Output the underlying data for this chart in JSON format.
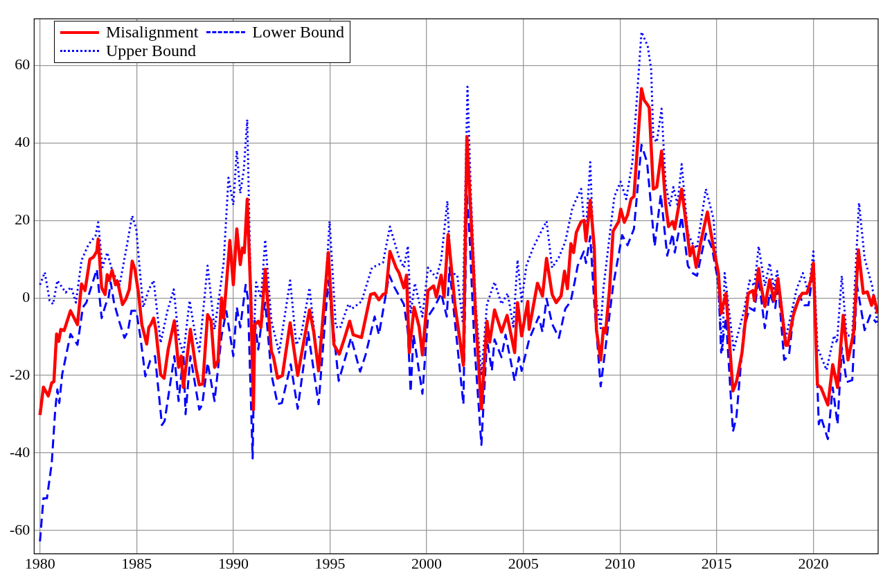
{
  "chart_data": {
    "type": "line",
    "xlim": [
      1979.7,
      2023.35
    ],
    "xticks": [
      1980,
      1985,
      1990,
      1995,
      2000,
      2005,
      2010,
      2015,
      2020
    ],
    "ylim": [
      -66,
      72
    ],
    "yticks": [
      -60,
      -40,
      -20,
      0,
      20,
      40,
      60
    ],
    "grid": true,
    "legend": "top left",
    "marker": "none",
    "series": [
      {
        "name": "Misalignment",
        "color": "#ff0000",
        "line_style": "solid",
        "x": [
          1980.0,
          1980.18,
          1980.43,
          1980.61,
          1980.72,
          1980.86,
          1980.97,
          1981.08,
          1981.25,
          1981.58,
          1981.94,
          1982.15,
          1982.33,
          1982.58,
          1982.76,
          1982.94,
          1983.01,
          1983.19,
          1983.37,
          1983.48,
          1983.58,
          1983.73,
          1983.91,
          1984.01,
          1984.27,
          1984.44,
          1984.62,
          1984.77,
          1984.91,
          1985.09,
          1985.27,
          1985.52,
          1985.63,
          1985.73,
          1985.88,
          1985.99,
          1986.24,
          1986.42,
          1986.63,
          1986.95,
          1987.17,
          1987.31,
          1987.42,
          1987.78,
          1988.06,
          1988.24,
          1988.42,
          1988.67,
          1988.85,
          1989.03,
          1989.21,
          1989.39,
          1989.5,
          1989.64,
          1989.82,
          1990.0,
          1990.18,
          1990.36,
          1990.47,
          1990.57,
          1990.72,
          1990.9,
          1991.04,
          1991.11,
          1991.29,
          1991.43,
          1991.65,
          1991.97,
          1992.08,
          1992.29,
          1992.54,
          1992.94,
          1993.33,
          1993.94,
          1994.16,
          1994.41,
          1994.91,
          1995.2,
          1995.48,
          1995.73,
          1996.02,
          1996.2,
          1996.63,
          1997.1,
          1997.31,
          1997.53,
          1997.74,
          1997.89,
          1998.1,
          1998.42,
          1998.57,
          1998.82,
          1998.96,
          1999.1,
          1999.35,
          1999.61,
          1999.78,
          2000.07,
          2000.36,
          2000.5,
          2000.75,
          2000.9,
          2001.11,
          2001.47,
          2001.9,
          2002.08,
          2002.29,
          2002.54,
          2002.83,
          2003.12,
          2003.26,
          2003.51,
          2003.87,
          2004.16,
          2004.55,
          2004.7,
          2004.91,
          2005.23,
          2005.3,
          2005.73,
          2005.99,
          2006.2,
          2006.49,
          2006.7,
          2006.95,
          2007.13,
          2007.28,
          2007.46,
          2007.6,
          2007.74,
          2007.99,
          2008.14,
          2008.24,
          2008.46,
          2008.67,
          2008.78,
          2009.0,
          2009.14,
          2009.25,
          2009.46,
          2009.64,
          2009.93,
          2010.04,
          2010.22,
          2010.39,
          2010.57,
          2010.72,
          2011.11,
          2011.25,
          2011.4,
          2011.51,
          2011.72,
          2011.9,
          2012.15,
          2012.36,
          2012.51,
          2012.72,
          2012.83,
          2013.19,
          2013.44,
          2013.62,
          2013.76,
          2013.94,
          2014.16,
          2014.52,
          2014.62,
          2014.84,
          2015.09,
          2015.23,
          2015.48,
          2015.84,
          2016.02,
          2016.31,
          2016.63,
          2016.88,
          2016.95,
          2017.17,
          2017.27,
          2017.49,
          2017.74,
          2017.96,
          2018.17,
          2018.57,
          2018.67,
          2018.96,
          2019.21,
          2019.42,
          2019.67,
          2019.89,
          2020.0,
          2020.21,
          2020.39,
          2020.75,
          2021.0,
          2021.25,
          2021.54,
          2021.79,
          2022.08,
          2022.33,
          2022.58,
          2022.79,
          2023.01,
          2023.12,
          2023.33
        ],
        "values": [
          -30.2,
          -23,
          -25.3,
          -21.9,
          -21.6,
          -9.3,
          -11.2,
          -8.1,
          -8.4,
          -3.3,
          -6.9,
          3.6,
          1.9,
          10,
          10.5,
          12,
          15.2,
          2.6,
          0.9,
          6,
          4.5,
          7.1,
          3.4,
          4.3,
          -1.7,
          -0.3,
          2.2,
          9.5,
          7.4,
          1.4,
          -6.9,
          -11.9,
          -7.6,
          -6.9,
          -5.2,
          -8.1,
          -19.8,
          -20.7,
          -13.3,
          -5.9,
          -17.9,
          -15,
          -23.1,
          -8.1,
          -17.9,
          -22.4,
          -22.2,
          -4.3,
          -5.9,
          -17.9,
          -16.2,
          0,
          -5.2,
          3.4,
          14.8,
          3.4,
          17.8,
          8.6,
          12.9,
          11.7,
          25.5,
          1,
          -28.8,
          -6.9,
          -6,
          -7.6,
          7.4,
          -13.8,
          -15.3,
          -20.7,
          -20,
          -6.4,
          -20,
          -3.1,
          -8.8,
          -18.8,
          11.7,
          -12,
          -14.5,
          -10.7,
          -6,
          -9.5,
          -10.2,
          0.9,
          1.2,
          -0.5,
          0.9,
          1.2,
          12,
          7.8,
          6.5,
          2.6,
          5.9,
          -14.1,
          -2.4,
          -7.4,
          -14.7,
          1.9,
          3.1,
          0.2,
          5.9,
          0.2,
          16.4,
          -2.1,
          -17.4,
          41.6,
          21,
          -5.5,
          -28.6,
          -6,
          -11.4,
          -3.1,
          -8.8,
          -4.5,
          -14.1,
          -1.2,
          -9.8,
          -0.9,
          -8.1,
          3.8,
          0.5,
          10.2,
          0.9,
          -1.2,
          0.5,
          6.9,
          2.4,
          14,
          11.7,
          16.9,
          19.7,
          20,
          14.7,
          25.2,
          12.8,
          -8.3,
          -16,
          -7.8,
          -9,
          2.4,
          17.2,
          19.7,
          22.9,
          19.5,
          21.4,
          25.5,
          26.2,
          54,
          51,
          50,
          49.1,
          28.1,
          28.6,
          37.9,
          24.1,
          18.4,
          19.7,
          17.8,
          28.1,
          18.4,
          10.9,
          13.3,
          7.9,
          14,
          22.2,
          19.1,
          12.8,
          6.4,
          -4,
          1.2,
          -24,
          -21.7,
          -14.1,
          1.2,
          1.9,
          -0.7,
          7.6,
          3.8,
          -2.2,
          4.7,
          -0.7,
          5,
          -12.2,
          -12.2,
          -4.5,
          -0.7,
          1.2,
          1.2,
          5,
          9,
          -22.4,
          -23.1,
          -27.6,
          -17.2,
          -23.1,
          -4.5,
          -16,
          -9,
          12.4,
          1.2,
          1.6,
          -1.9,
          0.5,
          -4
        ]
      },
      {
        "name": "Lower Bound",
        "color": "#0000ff",
        "line_style": "dashed",
        "x": [
          1980.0,
          1980.18,
          1980.36,
          1980.61,
          1980.79,
          1980.9,
          1981.0,
          1981.15,
          1981.58,
          1981.94,
          1982.22,
          1982.4,
          1982.94,
          1983.19,
          1983.4,
          1983.55,
          1983.66,
          1983.83,
          1984.09,
          1984.37,
          1984.55,
          1984.73,
          1984.98,
          1985.2,
          1985.45,
          1985.7,
          1985.95,
          1986.31,
          1986.45,
          1986.95,
          1987.17,
          1987.42,
          1987.53,
          1987.78,
          1988.24,
          1988.39,
          1988.67,
          1989.03,
          1989.39,
          1989.64,
          1990.0,
          1990.18,
          1990.36,
          1990.64,
          1990.75,
          1991.0,
          1991.11,
          1991.29,
          1991.47,
          1991.65,
          1991.97,
          1992.29,
          1992.51,
          1992.97,
          1993.33,
          1993.87,
          1994.41,
          1994.91,
          1995.45,
          1996.09,
          1996.56,
          1996.84,
          1997.31,
          1997.53,
          1998.06,
          1998.35,
          1998.82,
          1999.03,
          1999.17,
          1999.32,
          1999.78,
          2000.07,
          2000.43,
          2000.75,
          2001.04,
          2001.18,
          2001.5,
          2001.9,
          2002.08,
          2002.22,
          2002.47,
          2002.83,
          2003.12,
          2003.37,
          2003.51,
          2003.87,
          2004.08,
          2004.55,
          2004.77,
          2004.91,
          2005.3,
          2005.8,
          2005.99,
          2006.2,
          2006.49,
          2006.84,
          2007.17,
          2007.45,
          2007.67,
          2007.81,
          2008.13,
          2008.24,
          2008.46,
          2008.67,
          2009.0,
          2009.25,
          2009.64,
          2010.11,
          2010.39,
          2010.72,
          2011.11,
          2011.4,
          2011.79,
          2012.11,
          2012.44,
          2012.72,
          2012.83,
          2013.19,
          2013.51,
          2013.76,
          2013.98,
          2014.44,
          2014.76,
          2015.09,
          2015.23,
          2015.48,
          2015.84,
          2016.02,
          2016.41,
          2016.7,
          2016.95,
          2017.17,
          2017.49,
          2017.74,
          2018.03,
          2018.17,
          2018.49,
          2018.74,
          2018.99,
          2019.28,
          2019.53,
          2019.75,
          2020.0,
          2020.28,
          2020.39,
          2020.75,
          2021.0,
          2021.25,
          2021.47,
          2021.72,
          2022.01,
          2022.26,
          2022.65,
          2022.94,
          2023.26
        ],
        "values": [
          -62.8,
          -51.7,
          -51.7,
          -42.6,
          -28.8,
          -23.6,
          -27.1,
          -19.7,
          -9.3,
          -12.1,
          -2.4,
          -1.2,
          7.4,
          -5.2,
          -1.7,
          0.2,
          4,
          -1.2,
          -5.9,
          -10.3,
          -8.6,
          -3.3,
          -3.3,
          -10.3,
          -20.2,
          -16.2,
          -15,
          -32.8,
          -31.7,
          -15,
          -26.6,
          -14.5,
          -30,
          -15,
          -28.8,
          -27.6,
          -16.7,
          -26.6,
          -9.8,
          -3.4,
          -15,
          -2.4,
          -7.6,
          3.4,
          0,
          -41.4,
          -5.9,
          -13.3,
          -5.9,
          -1.2,
          -19.7,
          -27.4,
          -27.1,
          -17.1,
          -28.6,
          -8.8,
          -27.4,
          4.5,
          -21.4,
          -10.3,
          -19,
          -14.7,
          -4.8,
          -9.5,
          5.9,
          2.6,
          -1.6,
          -8.8,
          -24.3,
          -9.5,
          -24.7,
          -4.8,
          -2.1,
          1.2,
          -4.8,
          7.8,
          -8.1,
          -27.4,
          26.4,
          15.7,
          -12.1,
          -37.9,
          -10.7,
          -18.8,
          -10.7,
          -15.3,
          -9.5,
          -21.4,
          -15.3,
          -18.8,
          -10.7,
          -4.8,
          -8.8,
          -0.2,
          -6.7,
          -10.3,
          -2.8,
          -0.9,
          4.5,
          8.3,
          12,
          9,
          15.9,
          -1.4,
          -22.8,
          -12.8,
          3.1,
          16.2,
          13.6,
          17.8,
          39.5,
          35,
          13.3,
          26.7,
          10.9,
          16.6,
          11.7,
          21,
          8.3,
          6.4,
          5.7,
          16.6,
          12.8,
          3.8,
          -14.1,
          -5.2,
          -34.5,
          -30.7,
          -7.8,
          -2.6,
          -3.3,
          5,
          -7.8,
          1.2,
          -2.6,
          3.8,
          -16,
          -14.8,
          -3.3,
          0.5,
          -1.9,
          -1.9,
          7.6,
          -32.6,
          -30.7,
          -36.4,
          -23.1,
          -32.6,
          -12.8,
          -21.7,
          -21.2,
          3.1,
          -8.3,
          -4.5,
          -6.4
        ]
      },
      {
        "name": "Upper Bound",
        "color": "#0000ff",
        "line_style": "dotted",
        "x": [
          1980.0,
          1980.25,
          1980.5,
          1980.68,
          1980.9,
          1981.33,
          1981.61,
          1981.86,
          1982.15,
          1982.51,
          1982.87,
          1983.01,
          1983.23,
          1983.48,
          1983.76,
          1984.12,
          1984.44,
          1984.77,
          1984.98,
          1985.16,
          1985.34,
          1985.63,
          1985.88,
          1986.24,
          1986.59,
          1986.92,
          1987.17,
          1987.42,
          1987.74,
          1988.06,
          1988.24,
          1988.67,
          1989.03,
          1989.32,
          1989.5,
          1989.75,
          1990.0,
          1990.18,
          1990.36,
          1990.54,
          1990.72,
          1990.9,
          1991.04,
          1991.18,
          1991.43,
          1991.65,
          1991.97,
          1992.37,
          1992.94,
          1993.26,
          1993.51,
          1993.94,
          1994.23,
          1994.62,
          1994.98,
          1995.3,
          1995.52,
          1995.95,
          1996.13,
          1996.63,
          1997.17,
          1997.74,
          1998.1,
          1998.57,
          1998.82,
          1999.03,
          1999.17,
          1999.39,
          1999.78,
          2000.07,
          2000.5,
          2000.75,
          2001.07,
          2001.25,
          2001.58,
          2001.86,
          2002.11,
          2002.29,
          2002.54,
          2002.83,
          2003.12,
          2003.51,
          2003.87,
          2004.19,
          2004.48,
          2004.7,
          2004.91,
          2005.16,
          2005.52,
          2005.88,
          2006.2,
          2006.49,
          2006.84,
          2007.17,
          2007.53,
          2007.74,
          2007.99,
          2008.21,
          2008.46,
          2008.71,
          2009.0,
          2009.14,
          2009.46,
          2009.71,
          2010.03,
          2010.32,
          2010.64,
          2011.11,
          2011.43,
          2011.61,
          2011.72,
          2011.9,
          2012.15,
          2012.36,
          2012.58,
          2012.76,
          2012.97,
          2013.19,
          2013.51,
          2013.76,
          2013.98,
          2014.44,
          2014.84,
          2015.02,
          2015.3,
          2015.41,
          2015.88,
          2016.41,
          2016.7,
          2016.95,
          2017.17,
          2017.49,
          2017.74,
          2017.96,
          2018.13,
          2018.57,
          2018.89,
          2019.14,
          2019.46,
          2019.75,
          2020.0,
          2020.21,
          2020.68,
          2021.07,
          2021.22,
          2021.47,
          2021.72,
          2022.01,
          2022.36,
          2022.65,
          2023.04,
          2023.33
        ],
        "values": [
          3.4,
          6.6,
          -0.7,
          -1.6,
          4.5,
          1.4,
          2.8,
          -1.2,
          9.7,
          13.8,
          16,
          19.5,
          7.9,
          11.7,
          6.6,
          3.4,
          12,
          21.2,
          17.8,
          7.4,
          -2.4,
          2.2,
          4.5,
          -11.6,
          -3.4,
          2.2,
          -10.3,
          -14.5,
          -0.7,
          -10.3,
          -13.8,
          8.3,
          -8.1,
          2.2,
          9.1,
          31,
          24,
          38,
          27,
          33,
          46,
          2,
          -12,
          4,
          0,
          15,
          -6,
          -14.1,
          4.5,
          -12.1,
          -9.5,
          2.6,
          -10.7,
          -9.5,
          19.8,
          -7.4,
          -7.8,
          -1.6,
          -2.8,
          -0.9,
          7.8,
          9.1,
          18.4,
          10.5,
          7.8,
          13.4,
          -4.1,
          3.8,
          -4.8,
          7.8,
          5.2,
          9.8,
          25,
          6.6,
          5.9,
          -6,
          54.5,
          26.4,
          -2.1,
          -20,
          -1.6,
          4.1,
          -1.6,
          1.2,
          -7.4,
          9.8,
          -0.9,
          8.4,
          13.1,
          16.7,
          19.8,
          7.8,
          10.5,
          14.5,
          23.1,
          25.5,
          28.1,
          15.3,
          35,
          1.2,
          -7.8,
          2.4,
          15.9,
          26.2,
          30,
          25.5,
          35,
          68.6,
          65,
          59,
          41.4,
          40.2,
          48.8,
          29.3,
          23.6,
          28.6,
          24.1,
          34.5,
          16.6,
          14,
          12.8,
          28.1,
          20.3,
          6.4,
          -13.4,
          6.4,
          -13.4,
          -3.3,
          4.5,
          3.1,
          13.3,
          3.1,
          9,
          2.4,
          6.9,
          -10.3,
          -3.3,
          2.4,
          6.4,
          1.2,
          12,
          -12.8,
          -18.6,
          -9.7,
          -11.6,
          5.7,
          -9.7,
          -9.7,
          24.5,
          10.2,
          3.1,
          -7.1
        ]
      }
    ]
  }
}
